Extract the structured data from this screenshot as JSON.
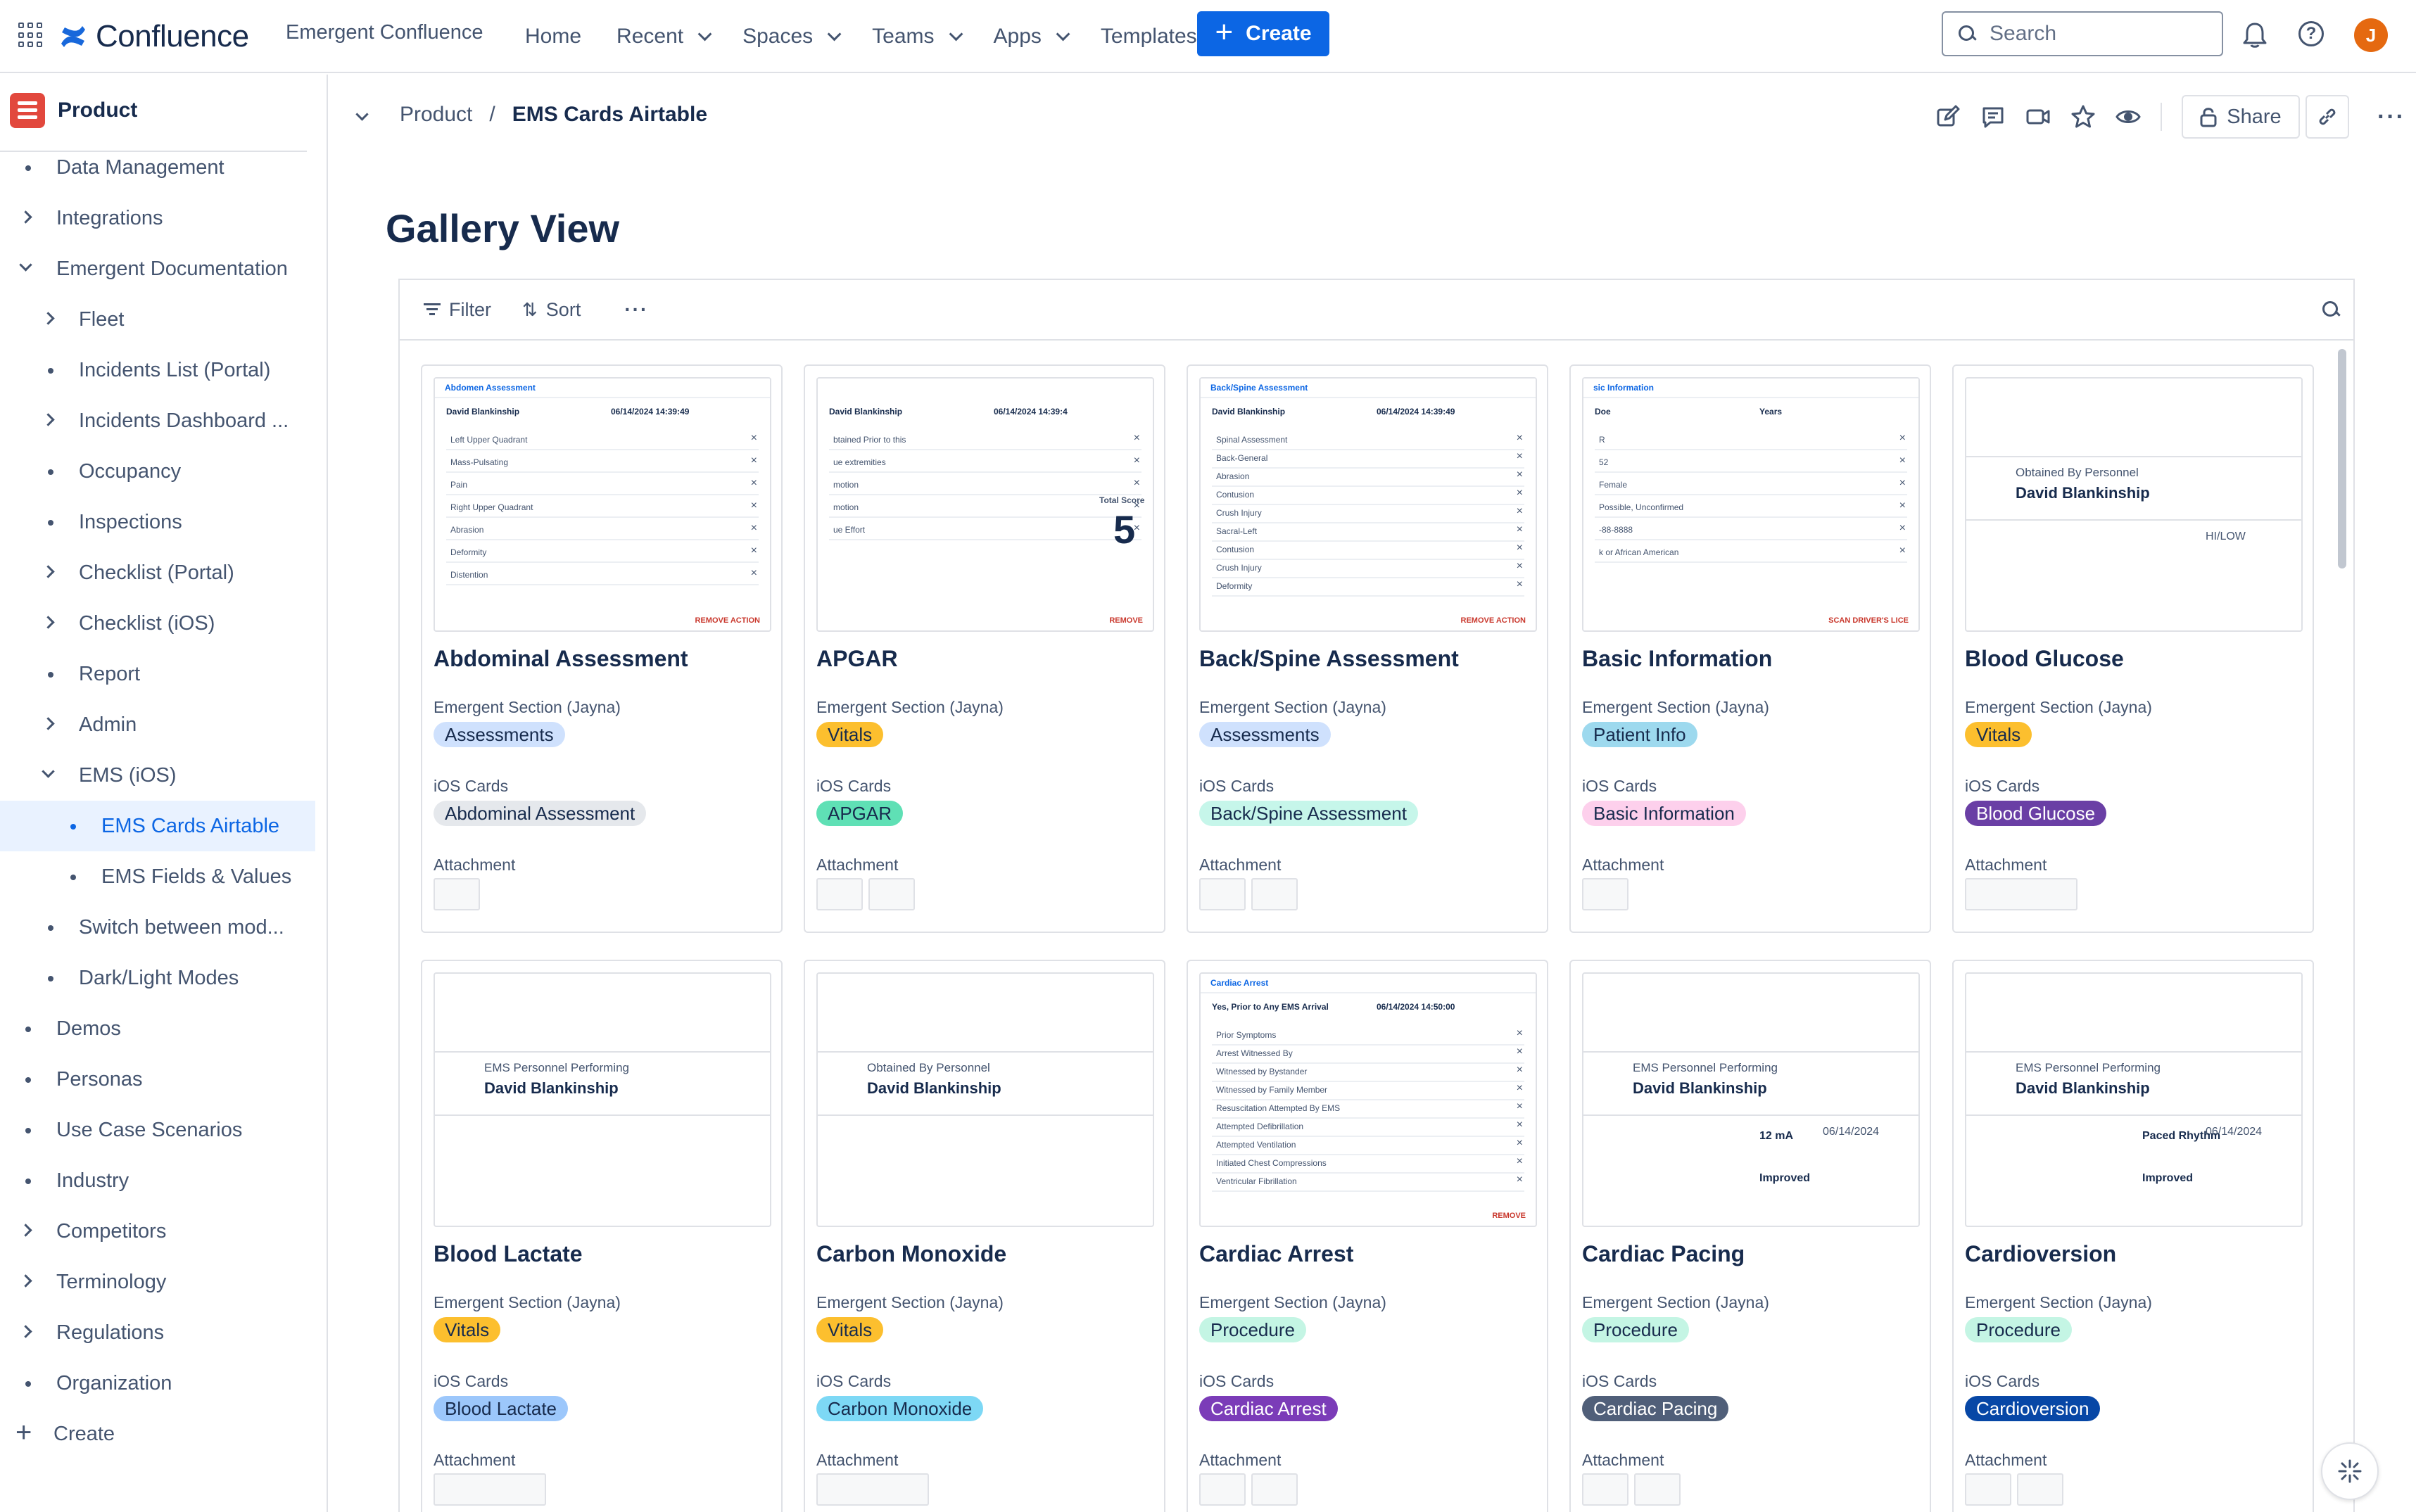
{
  "topnav": {
    "logo_text": "Confluence",
    "site_name": "Emergent Confluence",
    "items": [
      {
        "label": "Home",
        "dropdown": false
      },
      {
        "label": "Recent",
        "dropdown": true
      },
      {
        "label": "Spaces",
        "dropdown": true
      },
      {
        "label": "Teams",
        "dropdown": true
      },
      {
        "label": "Apps",
        "dropdown": true
      },
      {
        "label": "Templates",
        "dropdown": false
      }
    ],
    "create_label": "Create",
    "search_placeholder": "Search",
    "avatar_initial": "J",
    "accent": "#0c66e4",
    "avatar_color": "#e56910"
  },
  "sidebar": {
    "space_name": "Product",
    "space_color": "#e2483d",
    "items": [
      {
        "label": "Data Management",
        "level": 1,
        "type": "bullet"
      },
      {
        "label": "Integrations",
        "level": 1,
        "type": "collapsed"
      },
      {
        "label": "Emergent Documentation",
        "level": 1,
        "type": "expanded"
      },
      {
        "label": "Fleet",
        "level": 2,
        "type": "collapsed"
      },
      {
        "label": "Incidents List (Portal)",
        "level": 2,
        "type": "bullet"
      },
      {
        "label": "Incidents Dashboard ...",
        "level": 2,
        "type": "collapsed"
      },
      {
        "label": "Occupancy",
        "level": 2,
        "type": "bullet"
      },
      {
        "label": "Inspections",
        "level": 2,
        "type": "bullet"
      },
      {
        "label": "Checklist (Portal)",
        "level": 2,
        "type": "collapsed"
      },
      {
        "label": "Checklist (iOS)",
        "level": 2,
        "type": "collapsed"
      },
      {
        "label": "Report",
        "level": 2,
        "type": "bullet"
      },
      {
        "label": "Admin",
        "level": 2,
        "type": "collapsed"
      },
      {
        "label": "EMS (iOS)",
        "level": 2,
        "type": "expanded"
      },
      {
        "label": "EMS Cards Airtable",
        "level": 3,
        "type": "bullet",
        "selected": true
      },
      {
        "label": "EMS Fields & Values",
        "level": 3,
        "type": "bullet"
      },
      {
        "label": "Switch between mod...",
        "level": 2,
        "type": "bullet"
      },
      {
        "label": "Dark/Light Modes",
        "level": 2,
        "type": "bullet"
      },
      {
        "label": "Demos",
        "level": 1,
        "type": "bullet"
      },
      {
        "label": "Personas",
        "level": 1,
        "type": "bullet"
      },
      {
        "label": "Use Case Scenarios",
        "level": 1,
        "type": "bullet"
      },
      {
        "label": "Industry",
        "level": 1,
        "type": "bullet"
      },
      {
        "label": "Competitors",
        "level": 1,
        "type": "collapsed"
      },
      {
        "label": "Terminology",
        "level": 1,
        "type": "collapsed"
      },
      {
        "label": "Regulations",
        "level": 1,
        "type": "collapsed"
      },
      {
        "label": "Organization",
        "level": 1,
        "type": "bullet"
      },
      {
        "label": "Create",
        "level": 0,
        "type": "create"
      }
    ]
  },
  "breadcrumb": {
    "parent": "Product",
    "separator": "/",
    "current": "EMS Cards Airtable"
  },
  "page_actions": {
    "share_label": "Share",
    "more_label": "···"
  },
  "page": {
    "title": "Gallery View"
  },
  "embed": {
    "filter_label": "Filter",
    "sort_label": "Sort",
    "more_label": "···"
  },
  "fields": {
    "section_label": "Emergent Section (Jayna)",
    "ios_label": "iOS Cards",
    "attachment_label": "Attachment"
  },
  "tag_colors": {
    "Assessments": "#cfe1fd",
    "Vitals": "#fcbf2e",
    "Patient Info": "#9dd9ee",
    "Procedure": "#c4f5e4",
    "Abdominal Assessment": "#e5e8ec",
    "APGAR": "#5fe0b5",
    "Back/Spine Assessment": "#c6f6ea",
    "Basic Information": "#fdd0ec",
    "Blood Glucose": "#6a3fa5",
    "Blood Lactate": "#9cc7fb",
    "Carbon Monoxide": "#7dd8f5",
    "Cardiac Arrest": "#7b3cb8",
    "Cardiac Pacing": "#505f79",
    "Cardioversion": "#0747a6"
  },
  "cards": [
    {
      "title": "Abdominal Assessment",
      "section": "Assessments",
      "ios": "Abdominal Assessment",
      "ios_dark": false,
      "thumb": {
        "header": "Abdomen Assessment",
        "p1": "David Blankinship",
        "p2": "06/14/2024 14:39:49",
        "items": [
          "Left Upper Quadrant",
          "Mass-Pulsating",
          "Pain",
          "Right Upper Quadrant",
          "Abrasion",
          "Deformity",
          "Distention"
        ],
        "footer": "REMOVE ACTION"
      }
    },
    {
      "title": "APGAR",
      "section": "Vitals",
      "ios": "APGAR",
      "ios_dark": false,
      "thumb": {
        "header": "",
        "p1": "David Blankinship",
        "p2": "06/14/2024 14:39:4",
        "items": [
          "btained Prior to this",
          "ue extremities",
          "motion",
          "motion",
          "ue Effort"
        ],
        "score_label": "Total Score",
        "score": "5",
        "footer": "REMOVE"
      }
    },
    {
      "title": "Back/Spine Assessment",
      "section": "Assessments",
      "ios": "Back/Spine Assessment",
      "ios_dark": false,
      "thumb": {
        "header": "Back/Spine Assessment",
        "p1": "David Blankinship",
        "p2": "06/14/2024 14:39:49",
        "items": [
          "Spinal Assessment",
          "Back-General",
          "Abrasion",
          "Contusion",
          "Crush Injury",
          "Sacral-Left",
          "Contusion",
          "Crush Injury",
          "Deformity"
        ],
        "footer": "REMOVE ACTION"
      }
    },
    {
      "title": "Basic Information",
      "section": "Patient Info",
      "ios": "Basic Information",
      "ios_dark": false,
      "thumb": {
        "header": "sic Information",
        "p1": "Doe",
        "p2": "Years",
        "items": [
          "R",
          "52",
          "Female",
          "Possible, Unconfirmed",
          "-88-8888",
          "k or African American"
        ],
        "footer": "SCAN DRIVER'S LICE"
      }
    },
    {
      "title": "Blood Glucose",
      "section": "Vitals",
      "ios": "Blood Glucose",
      "ios_dark": true,
      "thumb": {
        "header": "",
        "p0": "Obtained By Personnel",
        "p1": "David Blankinship",
        "p2": "HI/LOW",
        "items": []
      }
    },
    {
      "title": "Blood Lactate",
      "section": "Vitals",
      "ios": "Blood Lactate",
      "ios_dark": false,
      "thumb": {
        "header": "",
        "p0": "EMS Personnel Performing",
        "p1": "David Blankinship",
        "p2": "",
        "items": []
      }
    },
    {
      "title": "Carbon Monoxide",
      "section": "Vitals",
      "ios": "Carbon Monoxide",
      "ios_dark": false,
      "thumb": {
        "header": "",
        "p0": "Obtained By Personnel",
        "p1": "David Blankinship",
        "p2": "",
        "items": []
      }
    },
    {
      "title": "Cardiac Arrest",
      "section": "Procedure",
      "ios": "Cardiac Arrest",
      "ios_dark": true,
      "thumb": {
        "header": "Cardiac Arrest",
        "p1": "Yes, Prior to Any EMS Arrival",
        "p2": "06/14/2024 14:50:00",
        "items": [
          "Prior Symptoms",
          "Arrest Witnessed By",
          "Witnessed by Bystander",
          "Witnessed by Family Member",
          "Resuscitation Attempted By EMS",
          "Attempted Defibrillation",
          "Attempted Ventilation",
          "Initiated Chest Compressions",
          "Ventricular Fibrillation"
        ],
        "footer": "REMOVE"
      }
    },
    {
      "title": "Cardiac Pacing",
      "section": "Procedure",
      "ios": "Cardiac Pacing",
      "ios_dark": true,
      "thumb": {
        "header": "",
        "p0": "EMS Personnel Performing",
        "p1": "David Blankinship",
        "p2": "06/14/2024",
        "items": [
          "12 mA",
          "Improved"
        ]
      }
    },
    {
      "title": "Cardioversion",
      "section": "Procedure",
      "ios": "Cardioversion",
      "ios_dark": true,
      "thumb": {
        "header": "",
        "p0": "EMS Personnel Performing",
        "p1": "David Blankinship",
        "p2": "06/14/2024",
        "items": [
          "Paced Rhythm",
          "Improved"
        ]
      }
    }
  ]
}
